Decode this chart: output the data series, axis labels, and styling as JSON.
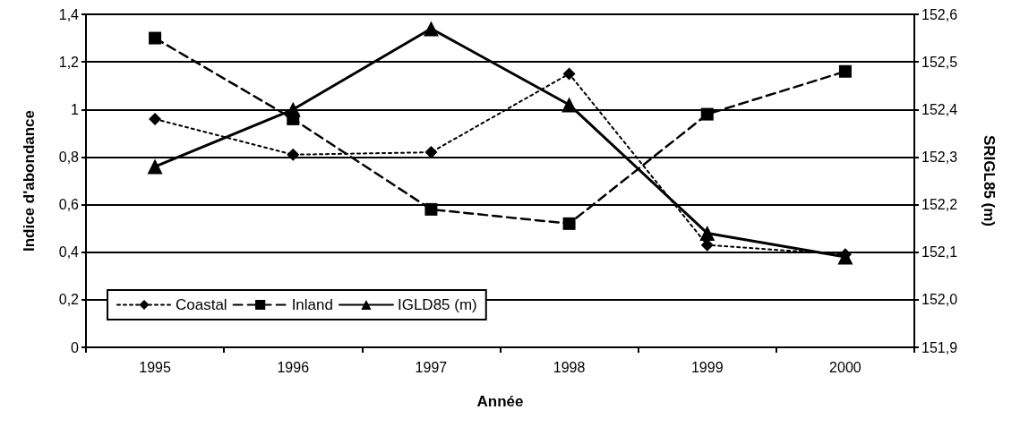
{
  "chart_data": {
    "type": "line",
    "xlabel": "Année",
    "ylabel": "Indice d'abondance",
    "y2label": "SRIGL85 (m)",
    "categories": [
      "1995",
      "1996",
      "1997",
      "1998",
      "1999",
      "2000"
    ],
    "series": [
      {
        "name": "Coastal",
        "color": "#000000",
        "marker": "diamond",
        "line_style": "dotted",
        "values": [
          0.96,
          0.81,
          0.82,
          1.15,
          0.43,
          0.39
        ]
      },
      {
        "name": "Inland",
        "color": "#000000",
        "marker": "square",
        "line_style": "dashed",
        "values": [
          1.3,
          0.96,
          0.58,
          0.52,
          0.98,
          1.16
        ]
      },
      {
        "name": "IGLD85 (m)",
        "color": "#000000",
        "marker": "triangle",
        "line_style": "solid",
        "axis": "y2",
        "values": [
          152.28,
          152.4,
          152.57,
          152.41,
          152.14,
          152.09
        ]
      }
    ],
    "ylim": [
      0,
      1.4
    ],
    "yticks": [
      0,
      {
        "value": 0.2,
        "label": "0,2"
      },
      {
        "value": 0.4,
        "label": "0,4"
      },
      {
        "value": 0.6,
        "label": "0,6"
      },
      {
        "value": 0.8,
        "label": "0,8"
      },
      1,
      {
        "value": 1.2,
        "label": "1,2"
      },
      {
        "value": 1.4,
        "label": "1,4"
      }
    ],
    "y2lim": [
      151.9,
      152.6
    ],
    "y2ticks": [
      {
        "value": 151.9,
        "label": "151,9"
      },
      {
        "value": 152.0,
        "label": "152,0"
      },
      {
        "value": 152.1,
        "label": "152,1"
      },
      {
        "value": 152.2,
        "label": "152,2"
      },
      {
        "value": 152.3,
        "label": "152,3"
      },
      {
        "value": 152.4,
        "label": "152,4"
      },
      {
        "value": 152.5,
        "label": "152,5"
      },
      {
        "value": 152.6,
        "label": "152,6"
      }
    ],
    "grid": "y",
    "legend": "bottom left"
  }
}
